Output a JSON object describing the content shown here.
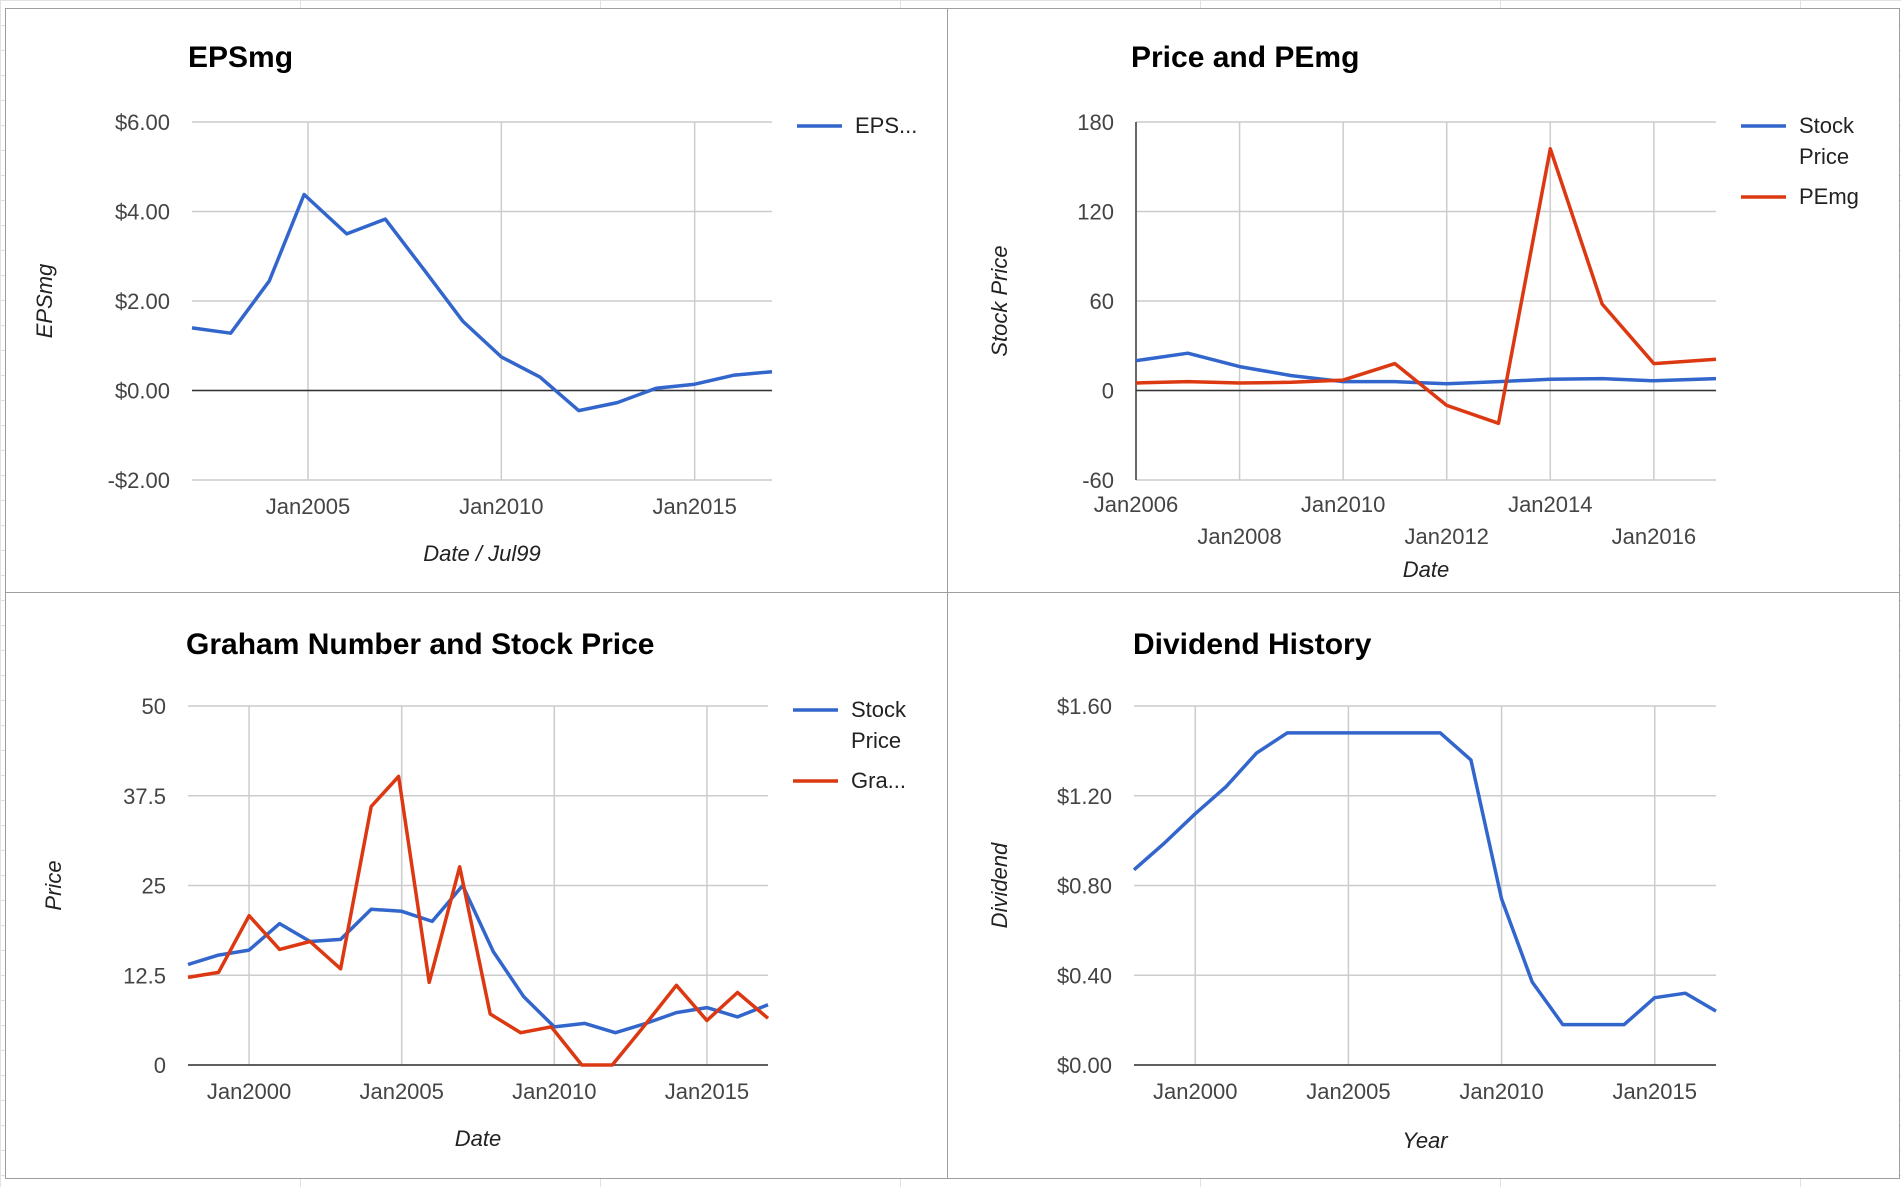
{
  "chart_data": [
    {
      "type": "line",
      "title": "EPSmg",
      "xlabel": "Date / Jul99",
      "ylabel": "EPSmg",
      "x_range": [
        2002,
        2017
      ],
      "x_ticks": [
        {
          "v": 2005,
          "label": "Jan2005"
        },
        {
          "v": 2010,
          "label": "Jan2010"
        },
        {
          "v": 2015,
          "label": "Jan2015"
        }
      ],
      "y_range": [
        -2,
        6
      ],
      "y_ticks": [
        {
          "v": 6,
          "label": "$6.00"
        },
        {
          "v": 4,
          "label": "$4.00"
        },
        {
          "v": 2,
          "label": "$2.00"
        },
        {
          "v": 0,
          "label": "$0.00"
        },
        {
          "v": -2,
          "label": "-$2.00"
        }
      ],
      "grid": true,
      "legend": "right",
      "series": [
        {
          "name": "EPS...",
          "color": "#3366cc",
          "x": [
            2002,
            2003,
            2004,
            2004.9,
            2006,
            2007,
            2008,
            2009,
            2010,
            2011,
            2012,
            2013,
            2014,
            2015,
            2016,
            2017
          ],
          "y": [
            1.4,
            1.28,
            2.45,
            4.38,
            3.5,
            3.83,
            2.7,
            1.55,
            0.75,
            0.3,
            -0.45,
            -0.27,
            0.05,
            0.14,
            0.34,
            0.42
          ]
        }
      ]
    },
    {
      "type": "line",
      "title": "Price and PEmg",
      "xlabel": "Date",
      "ylabel": "Stock Price",
      "x_range": [
        2006,
        2017.2
      ],
      "x_ticks": [
        {
          "v": 2006,
          "label": "Jan2006"
        },
        {
          "v": 2008,
          "label": "Jan2008"
        },
        {
          "v": 2010,
          "label": "Jan2010"
        },
        {
          "v": 2012,
          "label": "Jan2012"
        },
        {
          "v": 2014,
          "label": "Jan2014"
        },
        {
          "v": 2016,
          "label": "Jan2016"
        }
      ],
      "y_range": [
        -60,
        180
      ],
      "y_ticks": [
        {
          "v": 180,
          "label": "180"
        },
        {
          "v": 120,
          "label": "120"
        },
        {
          "v": 60,
          "label": "60"
        },
        {
          "v": 0,
          "label": "0"
        },
        {
          "v": -60,
          "label": "-60"
        }
      ],
      "grid": true,
      "legend": "right",
      "series": [
        {
          "name": "Stock Price",
          "color": "#3366cc",
          "x": [
            2006,
            2007,
            2008,
            2009,
            2010,
            2011,
            2012,
            2013,
            2014,
            2015,
            2016,
            2017.2
          ],
          "y": [
            20,
            25,
            16,
            10,
            6,
            6,
            4.5,
            6,
            7.5,
            8,
            6.5,
            8
          ]
        },
        {
          "name": "PEmg",
          "color": "#dc3912",
          "x": [
            2006,
            2007,
            2008,
            2009,
            2010,
            2011,
            2012,
            2013,
            2014,
            2015,
            2016,
            2017.2
          ],
          "y": [
            5,
            6,
            5,
            5.5,
            7,
            18,
            -10,
            -22,
            162,
            58,
            18,
            21
          ]
        }
      ]
    },
    {
      "type": "line",
      "title": "Graham Number and Stock Price",
      "xlabel": "Date",
      "ylabel": "Price",
      "x_range": [
        1998,
        2017
      ],
      "x_ticks": [
        {
          "v": 2000,
          "label": "Jan2000"
        },
        {
          "v": 2005,
          "label": "Jan2005"
        },
        {
          "v": 2010,
          "label": "Jan2010"
        },
        {
          "v": 2015,
          "label": "Jan2015"
        }
      ],
      "y_range": [
        0,
        50
      ],
      "y_ticks": [
        {
          "v": 50,
          "label": "50"
        },
        {
          "v": 37.5,
          "label": "37.5"
        },
        {
          "v": 25,
          "label": "25"
        },
        {
          "v": 12.5,
          "label": "12.5"
        },
        {
          "v": 0,
          "label": "0"
        }
      ],
      "grid": true,
      "legend": "right",
      "series": [
        {
          "name": "Stock Price",
          "color": "#3366cc",
          "x": [
            1998,
            1999,
            2000,
            2001,
            2002,
            2003,
            2004,
            2005,
            2006,
            2007,
            2008,
            2009,
            2010,
            2011,
            2012,
            2013,
            2014,
            2015,
            2016,
            2017
          ],
          "y": [
            14,
            15.3,
            16,
            19.7,
            17.2,
            17.5,
            21.7,
            21.4,
            20,
            25,
            15.8,
            9.5,
            5.3,
            5.8,
            4.5,
            5.8,
            7.3,
            8,
            6.7,
            8.4
          ]
        },
        {
          "name": "Gra...",
          "color": "#dc3912",
          "x": [
            1998,
            1999,
            2000,
            2001,
            2002,
            2003,
            2004,
            2004.9,
            2005.9,
            2006.9,
            2007.9,
            2008.9,
            2009.9,
            2010.9,
            2011.9,
            2012.9,
            2014,
            2015,
            2016,
            2017
          ],
          "y": [
            12.2,
            12.9,
            20.8,
            16.1,
            17.2,
            13.4,
            36,
            40.2,
            11.5,
            27.6,
            7.1,
            4.5,
            5.3,
            0,
            0,
            5.2,
            11.1,
            6.2,
            10.1,
            6.5
          ]
        }
      ]
    },
    {
      "type": "line",
      "title": "Dividend History",
      "xlabel": "Year",
      "ylabel": "Dividend",
      "x_range": [
        1998,
        2017
      ],
      "x_ticks": [
        {
          "v": 2000,
          "label": "Jan2000"
        },
        {
          "v": 2005,
          "label": "Jan2005"
        },
        {
          "v": 2010,
          "label": "Jan2010"
        },
        {
          "v": 2015,
          "label": "Jan2015"
        }
      ],
      "y_range": [
        0,
        1.6
      ],
      "y_ticks": [
        {
          "v": 1.6,
          "label": "$1.60"
        },
        {
          "v": 1.2,
          "label": "$1.20"
        },
        {
          "v": 0.8,
          "label": "$0.80"
        },
        {
          "v": 0.4,
          "label": "$0.40"
        },
        {
          "v": 0,
          "label": "$0.00"
        }
      ],
      "grid": true,
      "legend": "none",
      "series": [
        {
          "name": "",
          "color": "#3366cc",
          "x": [
            1998,
            1999,
            2000,
            2001,
            2002,
            2003,
            2004,
            2005,
            2006,
            2007,
            2008,
            2009,
            2010,
            2011,
            2012,
            2013,
            2014,
            2015,
            2016,
            2017
          ],
          "y": [
            0.87,
            0.99,
            1.12,
            1.24,
            1.39,
            1.48,
            1.48,
            1.48,
            1.48,
            1.48,
            1.48,
            1.36,
            0.74,
            0.37,
            0.18,
            0.18,
            0.18,
            0.3,
            0.32,
            0.24
          ]
        }
      ]
    }
  ]
}
